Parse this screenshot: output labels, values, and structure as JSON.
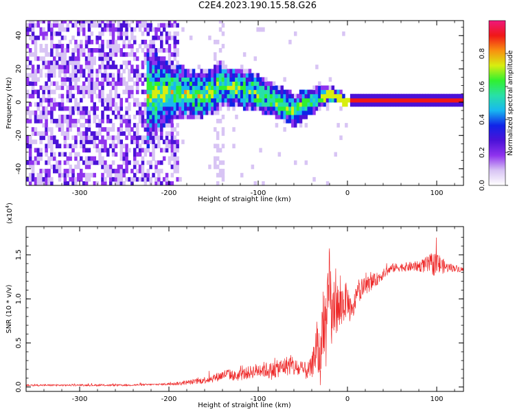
{
  "title": "C2E4.2023.190.15.58.G26",
  "colors": {
    "snr_line": "#ee2a2a",
    "axes": "#000000",
    "colormap": [
      "#ffffff",
      "#d8c4f4",
      "#8f33ee",
      "#4b12d8",
      "#1024e8",
      "#18b8f0",
      "#28e0a8",
      "#30f030",
      "#d8ee10",
      "#f89010",
      "#f01818",
      "#f0187c"
    ]
  },
  "chart_data": [
    {
      "type": "heatmap",
      "title": "C2E4.2023.190.15.58.G26",
      "xlabel": "Height of straight line (km)",
      "ylabel": "Frequency (Hz)",
      "xlim": [
        -360,
        130
      ],
      "ylim": [
        -50,
        49
      ],
      "xticks": [
        -300,
        -200,
        -100,
        0,
        100
      ],
      "yticks": [
        -40,
        -20,
        0,
        20,
        40
      ],
      "colorbar": {
        "label": "Normalized spectral amplitude",
        "range": [
          0.0,
          1.0
        ],
        "ticks": [
          "0.0",
          "0.2",
          "0.4",
          "0.6",
          "0.8"
        ]
      },
      "ridge": {
        "x": [
          -225,
          -210,
          -190,
          -170,
          -155,
          -145,
          -135,
          -120,
          -105,
          -90,
          -75,
          -62,
          -50,
          -40,
          -30,
          -20,
          -10,
          -5,
          0,
          130
        ],
        "y": [
          2,
          4,
          5,
          3,
          5,
          9,
          8,
          7,
          5,
          2,
          -2,
          -6,
          -3,
          0,
          2,
          3,
          2,
          -1,
          0,
          0
        ]
      },
      "band_half_width": [
        30,
        22,
        16,
        14,
        14,
        14,
        12,
        12,
        12,
        10,
        10,
        10,
        9,
        8,
        6,
        5,
        4,
        3,
        2,
        2
      ],
      "noise_region_x": [
        -360,
        -190
      ],
      "noise_column_x": -145
    },
    {
      "type": "line",
      "xlabel": "Height of straight line (km)",
      "ylabel": "SNR (10 * v/v)",
      "y_multiplier": "(x10",
      "y_multiplier_exp": "4",
      "y_multiplier_close": ")",
      "xlim": [
        -360,
        130
      ],
      "ylim": [
        -0.05,
        1.82
      ],
      "xticks": [
        -300,
        -200,
        -100,
        0,
        100
      ],
      "yticks": [
        "0.0",
        "0.5",
        "1.0",
        "1.5"
      ],
      "series": [
        {
          "x": [
            -360,
            -300,
            -250,
            -210,
            -190,
            -170,
            -150,
            -135,
            -125,
            -115,
            -105,
            -95,
            -85,
            -75,
            -65,
            -55,
            -45,
            -40,
            -35,
            -30,
            -27,
            -24,
            -20,
            -17,
            -14,
            -10,
            -5,
            0,
            5,
            10,
            20,
            30,
            40,
            50,
            60,
            80,
            100,
            110,
            120,
            130
          ],
          "y": [
            0.02,
            0.02,
            0.02,
            0.03,
            0.04,
            0.06,
            0.1,
            0.15,
            0.12,
            0.15,
            0.18,
            0.2,
            0.18,
            0.22,
            0.25,
            0.2,
            0.18,
            0.22,
            0.45,
            0.3,
            0.9,
            0.55,
            1.2,
            0.7,
            1.05,
            0.85,
            0.95,
            1.0,
            0.8,
            1.05,
            1.15,
            1.2,
            1.28,
            1.35,
            1.36,
            1.37,
            1.4,
            1.36,
            1.35,
            1.33
          ],
          "noise": [
            0.01,
            0.01,
            0.01,
            0.01,
            0.02,
            0.03,
            0.05,
            0.06,
            0.06,
            0.07,
            0.08,
            0.09,
            0.1,
            0.1,
            0.12,
            0.1,
            0.1,
            0.12,
            0.3,
            0.3,
            0.45,
            0.4,
            0.45,
            0.4,
            0.4,
            0.3,
            0.25,
            0.18,
            0.15,
            0.12,
            0.1,
            0.08,
            0.06,
            0.05,
            0.05,
            0.06,
            0.15,
            0.06,
            0.04,
            0.03
          ]
        }
      ]
    }
  ]
}
